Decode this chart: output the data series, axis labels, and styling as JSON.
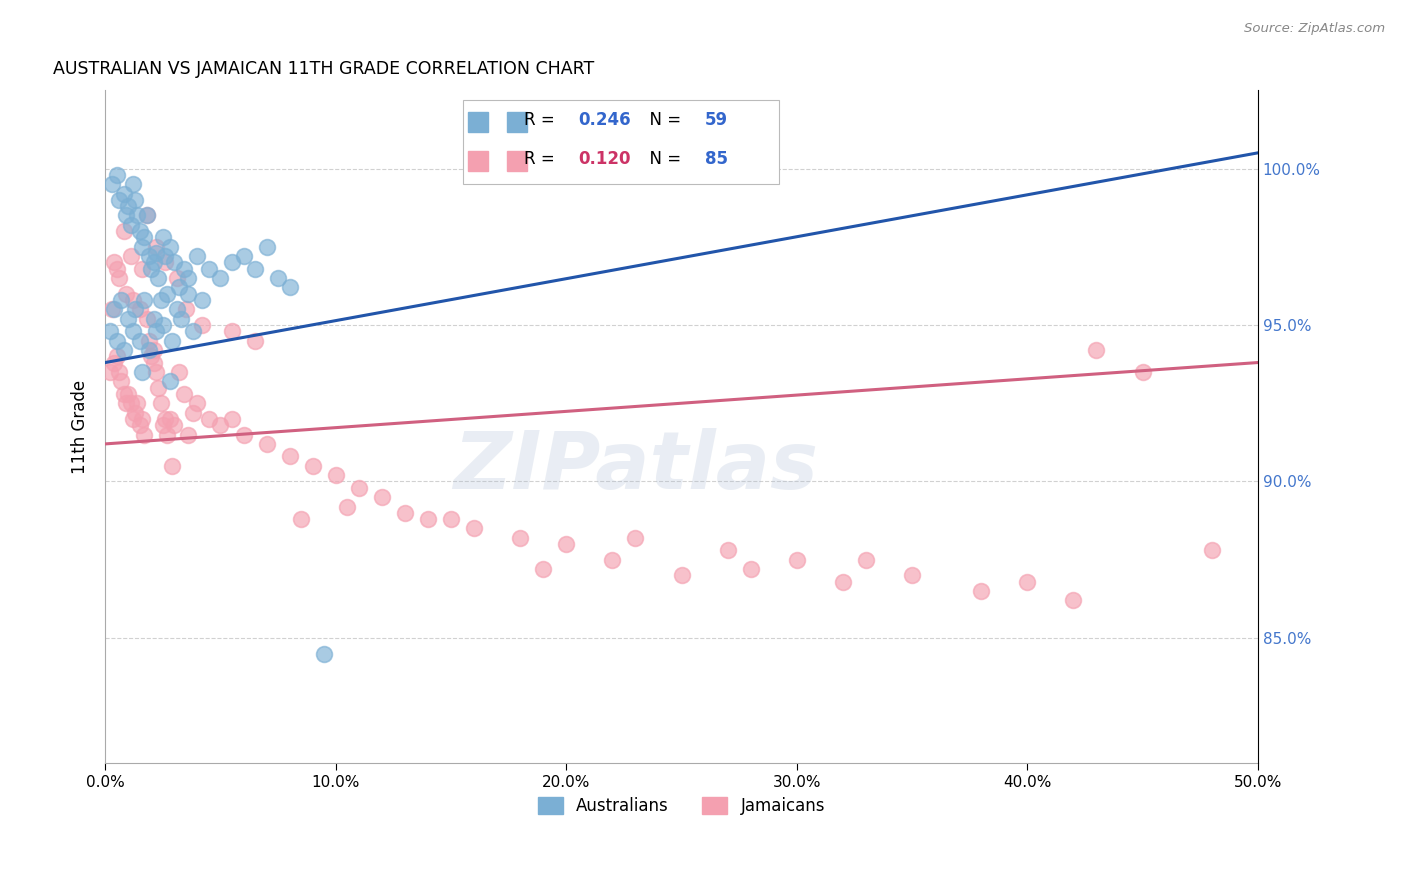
{
  "title": "AUSTRALIAN VS JAMAICAN 11TH GRADE CORRELATION CHART",
  "source": "Source: ZipAtlas.com",
  "ylabel": "11th Grade",
  "xlim": [
    0.0,
    50.0
  ],
  "ylim": [
    81.0,
    102.5
  ],
  "yticks": [
    85.0,
    90.0,
    95.0,
    100.0
  ],
  "xticks": [
    0.0,
    10.0,
    20.0,
    30.0,
    40.0,
    50.0
  ],
  "blue_color": "#7BAFD4",
  "pink_color": "#F4A0B0",
  "trend_blue": "#2255AA",
  "trend_pink": "#D06080",
  "watermark": "ZIPatlas",
  "watermark_color": "#AABBD4",
  "aus_x": [
    0.3,
    0.5,
    0.6,
    0.8,
    0.9,
    1.0,
    1.1,
    1.2,
    1.3,
    1.4,
    1.5,
    1.6,
    1.7,
    1.8,
    1.9,
    2.0,
    2.1,
    2.2,
    2.3,
    2.5,
    2.6,
    2.8,
    3.0,
    3.2,
    3.4,
    3.6,
    4.0,
    4.5,
    5.0,
    5.5,
    6.0,
    6.5,
    7.0,
    7.5,
    8.0,
    0.4,
    0.7,
    1.0,
    1.3,
    1.7,
    2.1,
    2.4,
    2.7,
    3.1,
    3.6,
    4.2,
    0.2,
    0.5,
    0.8,
    1.2,
    1.5,
    1.9,
    2.2,
    2.5,
    2.9,
    3.3,
    3.8,
    1.6,
    2.8,
    9.5
  ],
  "aus_y": [
    99.5,
    99.8,
    99.0,
    99.2,
    98.5,
    98.8,
    98.2,
    99.5,
    99.0,
    98.5,
    98.0,
    97.5,
    97.8,
    98.5,
    97.2,
    96.8,
    97.0,
    97.3,
    96.5,
    97.8,
    97.2,
    97.5,
    97.0,
    96.2,
    96.8,
    96.5,
    97.2,
    96.8,
    96.5,
    97.0,
    97.2,
    96.8,
    97.5,
    96.5,
    96.2,
    95.5,
    95.8,
    95.2,
    95.5,
    95.8,
    95.2,
    95.8,
    96.0,
    95.5,
    96.0,
    95.8,
    94.8,
    94.5,
    94.2,
    94.8,
    94.5,
    94.2,
    94.8,
    95.0,
    94.5,
    95.2,
    94.8,
    93.5,
    93.2,
    84.5
  ],
  "jam_x": [
    0.2,
    0.3,
    0.4,
    0.5,
    0.6,
    0.7,
    0.8,
    0.9,
    1.0,
    1.1,
    1.2,
    1.3,
    1.4,
    1.5,
    1.6,
    1.7,
    1.8,
    1.9,
    2.0,
    2.1,
    2.2,
    2.3,
    2.4,
    2.5,
    2.6,
    2.7,
    2.8,
    3.0,
    3.2,
    3.4,
    3.6,
    3.8,
    4.0,
    4.5,
    5.0,
    5.5,
    6.0,
    7.0,
    8.0,
    9.0,
    10.0,
    11.0,
    12.0,
    14.0,
    16.0,
    18.0,
    20.0,
    22.0,
    25.0,
    28.0,
    30.0,
    32.0,
    35.0,
    38.0,
    40.0,
    42.0,
    45.0,
    48.0,
    0.4,
    0.6,
    0.9,
    1.2,
    1.5,
    1.8,
    2.2,
    2.6,
    3.1,
    3.5,
    4.2,
    5.5,
    6.5,
    8.5,
    10.5,
    13.0,
    15.0,
    19.0,
    23.0,
    27.0,
    33.0,
    43.0,
    0.5,
    0.8,
    1.1,
    1.6,
    2.1,
    2.9
  ],
  "jam_y": [
    93.5,
    95.5,
    93.8,
    94.0,
    93.5,
    93.2,
    92.8,
    92.5,
    92.8,
    92.5,
    92.0,
    92.2,
    92.5,
    91.8,
    92.0,
    91.5,
    95.2,
    94.5,
    94.0,
    93.8,
    93.5,
    93.0,
    92.5,
    91.8,
    92.0,
    91.5,
    92.0,
    91.8,
    93.5,
    92.8,
    91.5,
    92.2,
    92.5,
    92.0,
    91.8,
    92.0,
    91.5,
    91.2,
    90.8,
    90.5,
    90.2,
    89.8,
    89.5,
    88.8,
    88.5,
    88.2,
    88.0,
    87.5,
    87.0,
    87.2,
    87.5,
    86.8,
    87.0,
    86.5,
    86.8,
    86.2,
    93.5,
    87.8,
    97.0,
    96.5,
    96.0,
    95.8,
    95.5,
    98.5,
    97.5,
    97.0,
    96.5,
    95.5,
    95.0,
    94.8,
    94.5,
    88.8,
    89.2,
    89.0,
    88.8,
    87.2,
    88.2,
    87.8,
    87.5,
    94.2,
    96.8,
    98.0,
    97.2,
    96.8,
    94.2,
    90.5
  ],
  "aus_trend_x": [
    0.0,
    50.0
  ],
  "aus_trend_y": [
    93.8,
    100.5
  ],
  "jam_trend_x": [
    0.0,
    50.0
  ],
  "jam_trend_y": [
    91.2,
    93.8
  ]
}
